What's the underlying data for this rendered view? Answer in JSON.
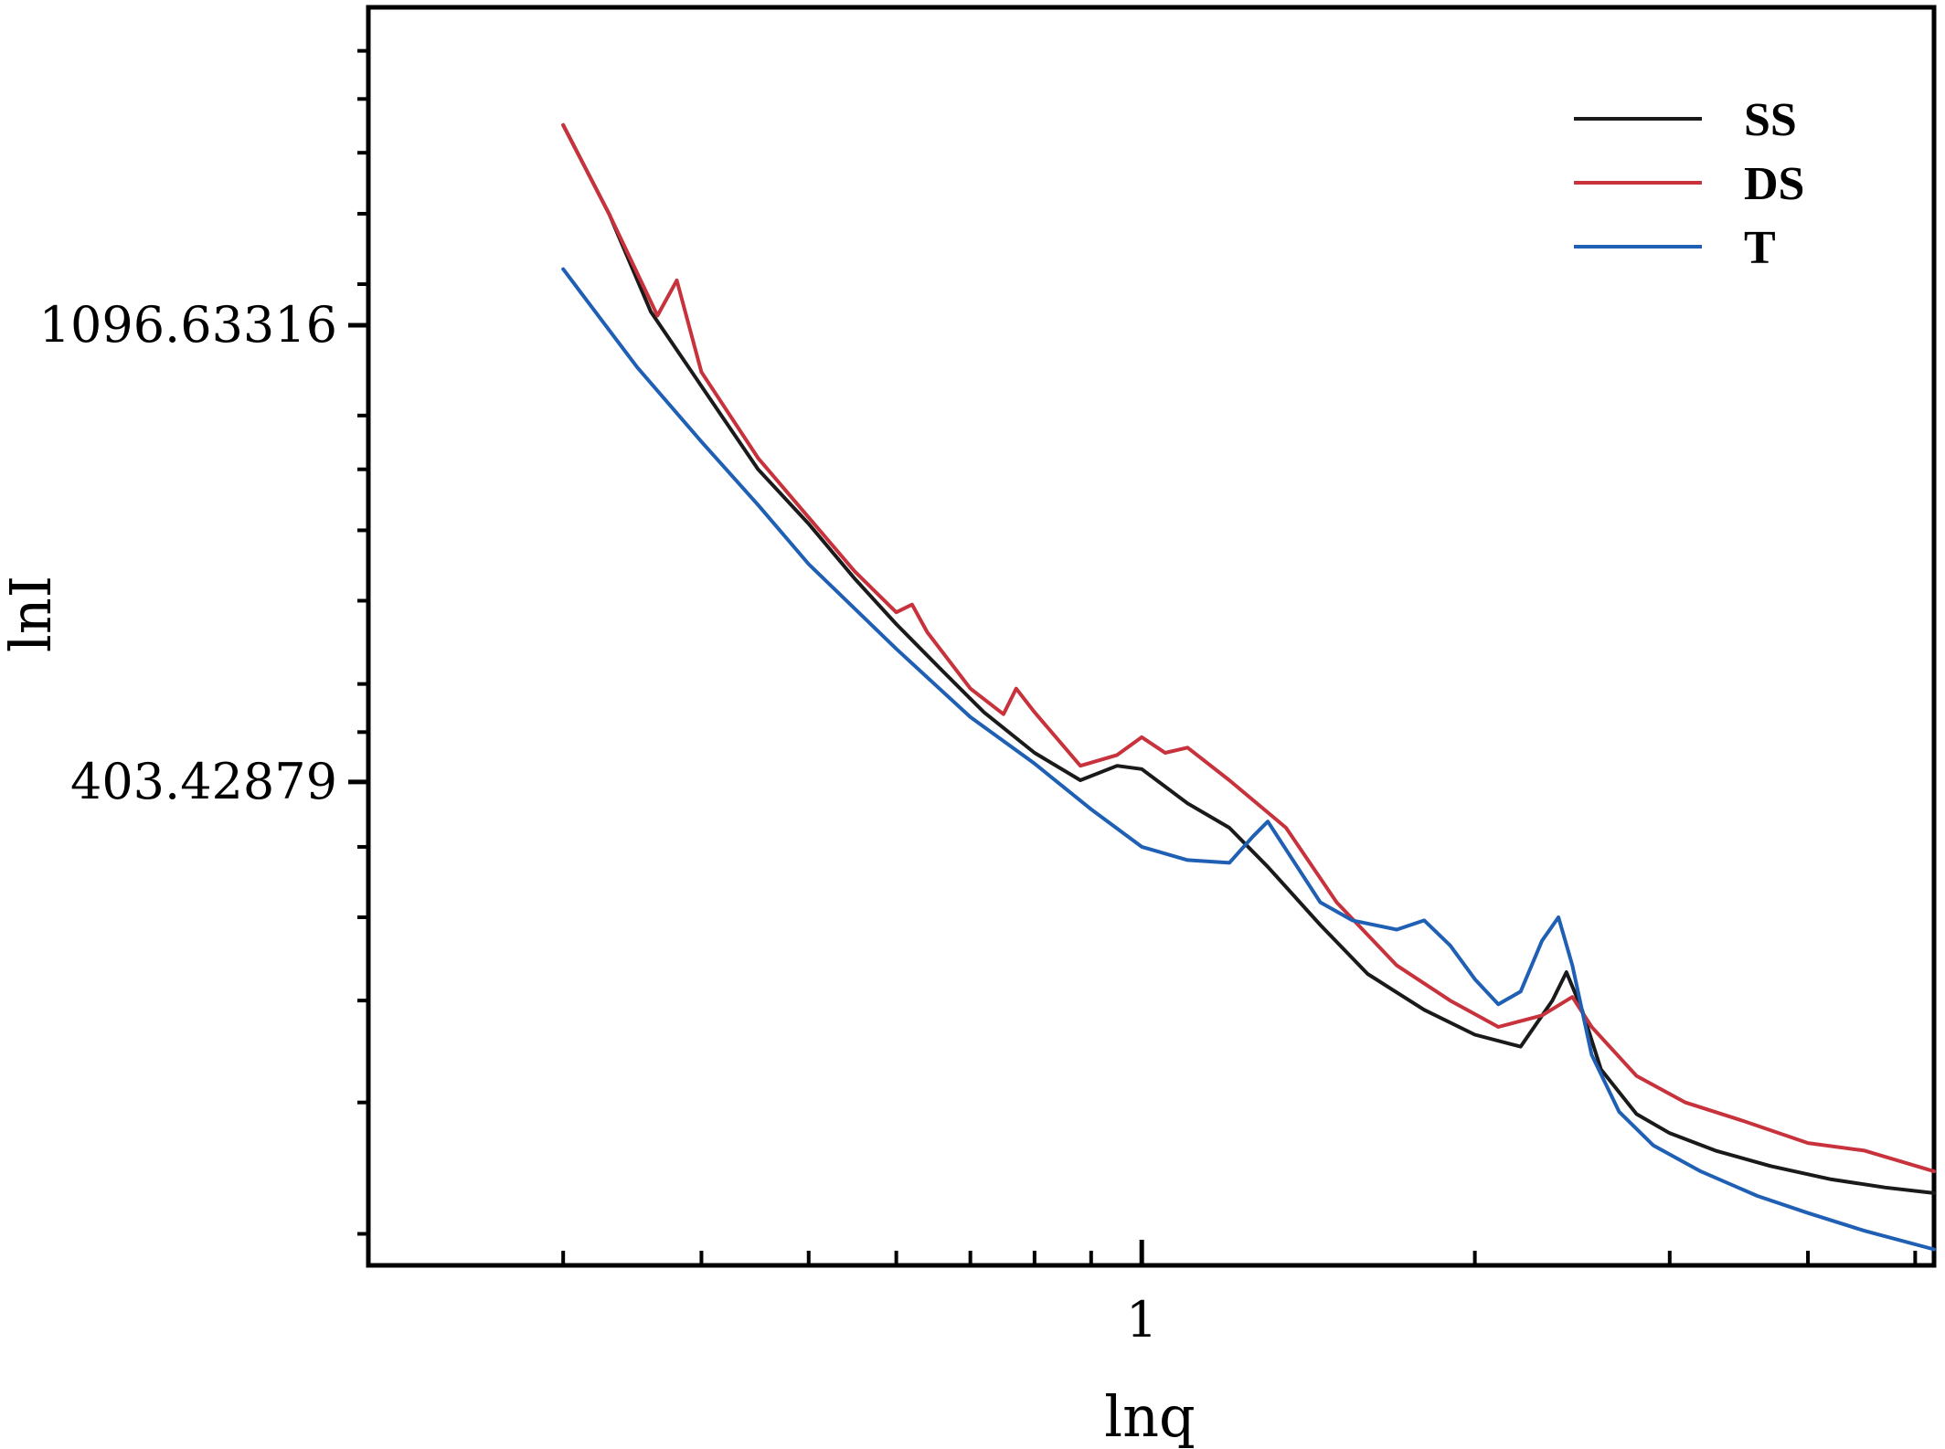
{
  "chart_data": {
    "type": "line",
    "xlabel": "lnq",
    "ylabel": "lnI",
    "x_scale": "log",
    "y_scale": "log",
    "xlim": [
      0.2,
      5.2
    ],
    "ylim": [
      140,
      2200
    ],
    "x_ticks": [
      {
        "value": 1,
        "label": "1"
      }
    ],
    "y_ticks": [
      {
        "value": 403.42879,
        "label": "403.42879"
      },
      {
        "value": 1096.63316,
        "label": "1096.63316"
      }
    ],
    "grid": false,
    "legend_position": "top-right",
    "series": [
      {
        "name": "SS",
        "color": "#1a1a1a",
        "points": [
          [
            0.3,
            1700
          ],
          [
            0.33,
            1400
          ],
          [
            0.36,
            1130
          ],
          [
            0.4,
            960
          ],
          [
            0.45,
            800
          ],
          [
            0.5,
            710
          ],
          [
            0.55,
            630
          ],
          [
            0.6,
            570
          ],
          [
            0.66,
            515
          ],
          [
            0.72,
            470
          ],
          [
            0.8,
            430
          ],
          [
            0.88,
            405
          ],
          [
            0.95,
            418
          ],
          [
            1.0,
            415
          ],
          [
            1.1,
            385
          ],
          [
            1.2,
            365
          ],
          [
            1.3,
            335
          ],
          [
            1.45,
            295
          ],
          [
            1.6,
            265
          ],
          [
            1.8,
            245
          ],
          [
            2.0,
            232
          ],
          [
            2.2,
            226
          ],
          [
            2.35,
            250
          ],
          [
            2.42,
            266
          ],
          [
            2.5,
            245
          ],
          [
            2.6,
            215
          ],
          [
            2.8,
            195
          ],
          [
            3.0,
            187
          ],
          [
            3.3,
            180
          ],
          [
            3.7,
            174
          ],
          [
            4.2,
            169
          ],
          [
            4.7,
            166
          ],
          [
            5.2,
            164
          ]
        ]
      },
      {
        "name": "DS",
        "color": "#c8323c",
        "points": [
          [
            0.3,
            1700
          ],
          [
            0.33,
            1400
          ],
          [
            0.365,
            1120
          ],
          [
            0.38,
            1210
          ],
          [
            0.4,
            990
          ],
          [
            0.45,
            820
          ],
          [
            0.5,
            720
          ],
          [
            0.55,
            640
          ],
          [
            0.6,
            585
          ],
          [
            0.62,
            595
          ],
          [
            0.64,
            560
          ],
          [
            0.7,
            495
          ],
          [
            0.75,
            468
          ],
          [
            0.77,
            495
          ],
          [
            0.8,
            470
          ],
          [
            0.88,
            418
          ],
          [
            0.95,
            428
          ],
          [
            1.0,
            445
          ],
          [
            1.05,
            430
          ],
          [
            1.1,
            435
          ],
          [
            1.2,
            405
          ],
          [
            1.35,
            365
          ],
          [
            1.5,
            310
          ],
          [
            1.7,
            270
          ],
          [
            1.9,
            250
          ],
          [
            2.1,
            236
          ],
          [
            2.3,
            242
          ],
          [
            2.45,
            252
          ],
          [
            2.55,
            236
          ],
          [
            2.8,
            212
          ],
          [
            3.1,
            200
          ],
          [
            3.5,
            192
          ],
          [
            4.0,
            183
          ],
          [
            4.5,
            180
          ],
          [
            5.2,
            172
          ]
        ]
      },
      {
        "name": "T",
        "color": "#1f5fb4",
        "points": [
          [
            0.3,
            1240
          ],
          [
            0.35,
            1000
          ],
          [
            0.4,
            850
          ],
          [
            0.45,
            740
          ],
          [
            0.5,
            650
          ],
          [
            0.6,
            540
          ],
          [
            0.7,
            465
          ],
          [
            0.8,
            420
          ],
          [
            0.9,
            380
          ],
          [
            1.0,
            350
          ],
          [
            1.1,
            340
          ],
          [
            1.2,
            338
          ],
          [
            1.26,
            358
          ],
          [
            1.3,
            370
          ],
          [
            1.35,
            348
          ],
          [
            1.45,
            310
          ],
          [
            1.55,
            298
          ],
          [
            1.7,
            292
          ],
          [
            1.8,
            298
          ],
          [
            1.9,
            282
          ],
          [
            2.0,
            262
          ],
          [
            2.1,
            248
          ],
          [
            2.2,
            255
          ],
          [
            2.3,
            285
          ],
          [
            2.38,
            300
          ],
          [
            2.45,
            270
          ],
          [
            2.55,
            222
          ],
          [
            2.7,
            196
          ],
          [
            2.9,
            182
          ],
          [
            3.2,
            172
          ],
          [
            3.6,
            163
          ],
          [
            4.0,
            157
          ],
          [
            4.5,
            151
          ],
          [
            5.2,
            145
          ]
        ]
      }
    ]
  }
}
